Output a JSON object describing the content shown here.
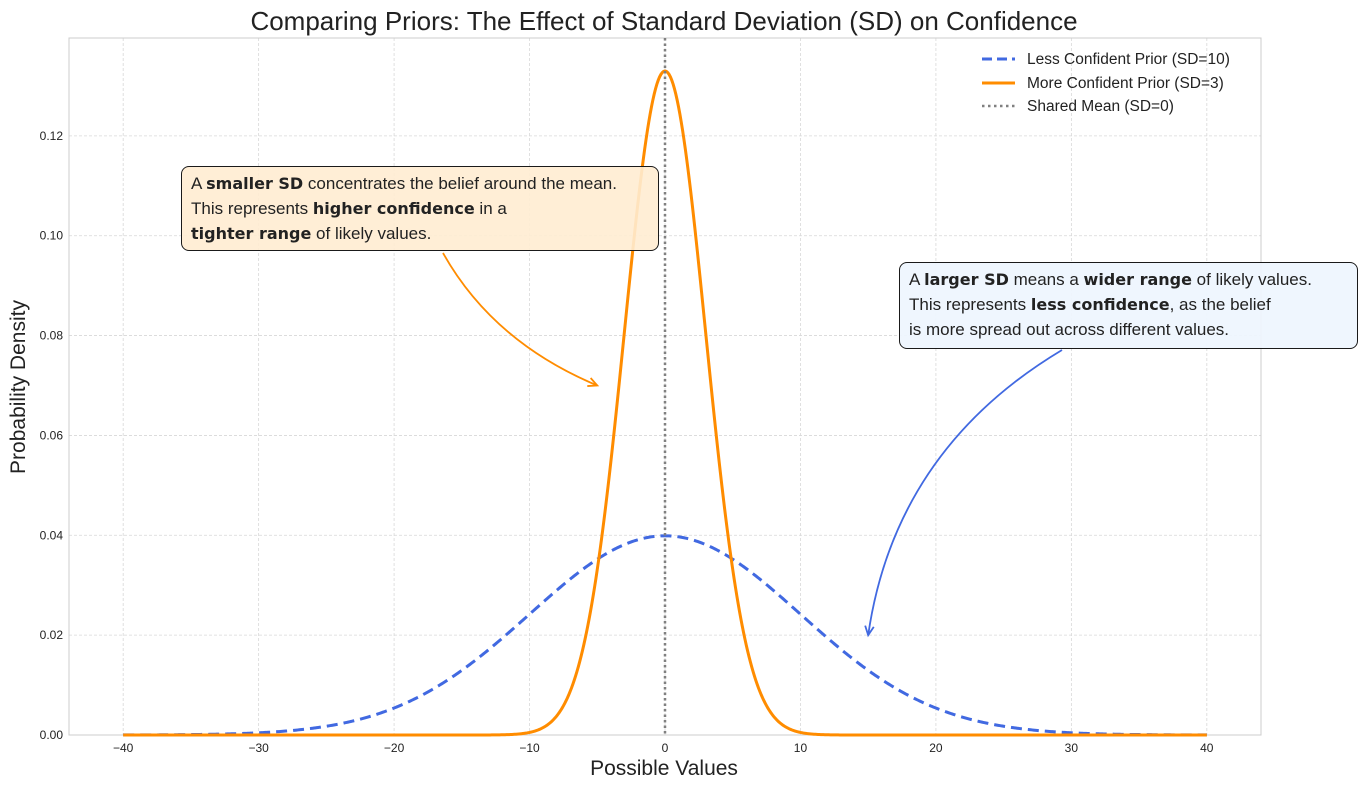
{
  "chart_data": {
    "type": "line",
    "title": "Comparing Priors: The Effect of Standard Deviation (SD) on Confidence",
    "xlabel": "Possible Values",
    "ylabel": "Probability Density",
    "xlim": [
      -44,
      44
    ],
    "ylim": [
      0,
      0.1396
    ],
    "xticks": [
      -40,
      -30,
      -20,
      -10,
      0,
      10,
      20,
      30,
      40
    ],
    "xtick_labels": [
      "−40",
      "−30",
      "−20",
      "−10",
      "0",
      "10",
      "20",
      "30",
      "40"
    ],
    "yticks": [
      0,
      0.02,
      0.04,
      0.06,
      0.08,
      0.1,
      0.12
    ],
    "ytick_labels": [
      "0.00",
      "0.02",
      "0.04",
      "0.06",
      "0.08",
      "0.10",
      "0.12"
    ],
    "grid": true,
    "legend_position": "top-right",
    "series": [
      {
        "name": "Less Confident Prior (SD=10)",
        "mean": 0,
        "sd": 10,
        "color": "#4169e1",
        "style": "dashed",
        "x": [
          -40,
          -35,
          -30,
          -25,
          -20,
          -15,
          -10,
          -5,
          0,
          5,
          10,
          15,
          20,
          25,
          30,
          35,
          40
        ],
        "y": [
          1.34e-05,
          8.7e-05,
          0.00044,
          0.00175,
          0.0054,
          0.013,
          0.0242,
          0.0352,
          0.0399,
          0.0352,
          0.0242,
          0.013,
          0.0054,
          0.00175,
          0.00044,
          8.7e-05,
          1.34e-05
        ]
      },
      {
        "name": "More Confident Prior (SD=3)",
        "mean": 0,
        "sd": 3,
        "color": "#ff8c00",
        "style": "solid",
        "x": [
          -40,
          -35,
          -30,
          -25,
          -20,
          -15,
          -10,
          -5,
          0,
          5,
          10,
          15,
          20,
          25,
          30,
          35,
          40
        ],
        "y": [
          0,
          0,
          0,
          0,
          0,
          5e-07,
          0.00051,
          0.0332,
          0.133,
          0.0332,
          0.00051,
          5e-07,
          0,
          0,
          0,
          0,
          0
        ]
      },
      {
        "name": "Shared Mean (SD=0)",
        "x_value": 0,
        "color": "#808080",
        "style": "dotted",
        "type": "vline"
      }
    ],
    "annotations": [
      {
        "color": "#ff8c00",
        "arrow_to": [
          -5,
          0.07
        ],
        "lines": [
          [
            {
              "t": "A ",
              "b": false
            },
            {
              "t": "smaller SD",
              "b": true
            },
            {
              "t": " concentrates the belief around the mean.",
              "b": false
            }
          ],
          [
            {
              "t": "This represents ",
              "b": false
            },
            {
              "t": "higher confidence",
              "b": true
            },
            {
              "t": " in a",
              "b": false
            }
          ],
          [
            {
              "t": "tighter range",
              "b": true
            },
            {
              "t": " of likely values.",
              "b": false
            }
          ]
        ]
      },
      {
        "color": "#4169e1",
        "arrow_to": [
          15,
          0.02
        ],
        "lines": [
          [
            {
              "t": "A ",
              "b": false
            },
            {
              "t": "larger SD",
              "b": true
            },
            {
              "t": " means a ",
              "b": false
            },
            {
              "t": "wider range",
              "b": true
            },
            {
              "t": " of likely values.",
              "b": false
            }
          ],
          [
            {
              "t": "This represents ",
              "b": false
            },
            {
              "t": "less confidence",
              "b": true
            },
            {
              "t": ", as the belief",
              "b": false
            }
          ],
          [
            {
              "t": "is more spread out across different values.",
              "b": false
            }
          ]
        ]
      }
    ]
  }
}
